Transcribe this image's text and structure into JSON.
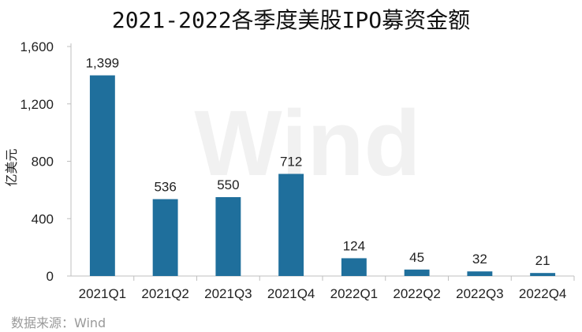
{
  "chart_data": {
    "type": "bar",
    "title": "2021-2022各季度美股IPO募资金额",
    "ylabel": "亿美元",
    "xlabel": "",
    "categories": [
      "2021Q1",
      "2021Q2",
      "2021Q3",
      "2021Q4",
      "2022Q1",
      "2022Q2",
      "2022Q3",
      "2022Q4"
    ],
    "values": [
      1399,
      536,
      550,
      712,
      124,
      45,
      32,
      21
    ],
    "data_labels": [
      "1,399",
      "536",
      "550",
      "712",
      "124",
      "45",
      "32",
      "21"
    ],
    "ylim": [
      0,
      1600
    ],
    "yticks": [
      0,
      400,
      800,
      1200,
      1600
    ],
    "ytick_labels": [
      "0",
      "400",
      "800",
      "1,200",
      "1,600"
    ],
    "bar_color": "#1f6f9c",
    "grid": false,
    "legend": "none"
  },
  "watermark": "Wind",
  "source": "数据来源：Wind"
}
